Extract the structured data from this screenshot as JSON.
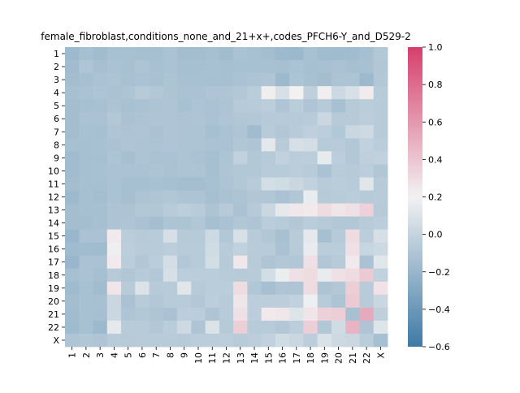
{
  "chart_data": {
    "type": "heatmap",
    "title": "female_fibroblast,conditions_none_and_21+x+,codes_PFCH6-Y_and_D529-2",
    "xlabel": "",
    "ylabel": "",
    "x_categories": [
      "1",
      "2",
      "3",
      "4",
      "5",
      "6",
      "7",
      "8",
      "9",
      "10",
      "11",
      "12",
      "13",
      "14",
      "15",
      "16",
      "17",
      "18",
      "19",
      "20",
      "21",
      "22",
      "X"
    ],
    "y_categories": [
      "1",
      "2",
      "3",
      "4",
      "5",
      "6",
      "7",
      "8",
      "9",
      "10",
      "11",
      "12",
      "13",
      "14",
      "15",
      "16",
      "17",
      "18",
      "19",
      "20",
      "21",
      "22",
      "X"
    ],
    "colorbar": {
      "range": [
        -0.6,
        1.0
      ],
      "ticks": [
        -0.6,
        -0.4,
        -0.2,
        0.0,
        0.2,
        0.4,
        0.6,
        0.8,
        1.0
      ],
      "tick_labels": [
        "−0.6",
        "−0.4",
        "−0.2",
        "0.0",
        "0.2",
        "0.4",
        "0.6",
        "0.8",
        "1.0"
      ],
      "colors": {
        "low": "#3f7aa5",
        "mid": "#f2f2f2",
        "high": "#d63e6c"
      }
    },
    "values": [
      [
        -0.18,
        -0.14,
        -0.16,
        -0.13,
        -0.13,
        -0.14,
        -0.14,
        -0.12,
        -0.15,
        -0.15,
        -0.14,
        -0.16,
        -0.12,
        -0.13,
        -0.15,
        -0.18,
        -0.19,
        -0.13,
        -0.16,
        -0.17,
        -0.16,
        -0.14,
        -0.08
      ],
      [
        -0.16,
        -0.1,
        -0.14,
        -0.12,
        -0.13,
        -0.11,
        -0.13,
        -0.12,
        -0.14,
        -0.14,
        -0.13,
        -0.14,
        -0.13,
        -0.13,
        -0.13,
        -0.14,
        -0.12,
        -0.14,
        -0.13,
        -0.12,
        -0.14,
        -0.13,
        -0.09
      ],
      [
        -0.15,
        -0.14,
        -0.12,
        -0.11,
        -0.13,
        -0.12,
        -0.13,
        -0.11,
        -0.13,
        -0.13,
        -0.14,
        -0.14,
        -0.12,
        -0.11,
        -0.1,
        -0.18,
        -0.11,
        -0.13,
        -0.15,
        -0.11,
        -0.11,
        -0.18,
        -0.08
      ],
      [
        -0.14,
        -0.12,
        -0.11,
        -0.12,
        -0.11,
        -0.07,
        -0.08,
        -0.11,
        -0.12,
        -0.12,
        -0.1,
        -0.1,
        -0.08,
        -0.05,
        0.22,
        0.08,
        0.21,
        -0.03,
        0.22,
        0.03,
        0.08,
        0.23,
        -0.06
      ],
      [
        -0.15,
        -0.14,
        -0.13,
        -0.11,
        -0.13,
        -0.12,
        -0.11,
        -0.1,
        -0.13,
        -0.11,
        -0.12,
        -0.11,
        -0.07,
        -0.06,
        -0.04,
        -0.1,
        -0.05,
        -0.1,
        -0.07,
        -0.13,
        -0.07,
        -0.05,
        -0.06
      ],
      [
        -0.15,
        -0.12,
        -0.12,
        -0.08,
        -0.12,
        -0.11,
        -0.1,
        -0.1,
        -0.11,
        -0.1,
        -0.12,
        -0.1,
        -0.09,
        -0.08,
        -0.07,
        -0.07,
        -0.07,
        -0.06,
        0.02,
        -0.07,
        -0.07,
        -0.04,
        -0.06
      ],
      [
        -0.15,
        -0.13,
        -0.14,
        -0.1,
        -0.11,
        -0.1,
        -0.12,
        -0.1,
        -0.11,
        -0.11,
        -0.14,
        -0.12,
        -0.1,
        -0.16,
        -0.06,
        -0.09,
        -0.06,
        -0.03,
        -0.04,
        -0.08,
        0.02,
        0.04,
        -0.06
      ],
      [
        -0.13,
        -0.14,
        -0.13,
        -0.12,
        -0.1,
        -0.11,
        -0.11,
        -0.1,
        -0.11,
        -0.11,
        -0.12,
        -0.12,
        -0.09,
        -0.1,
        0.13,
        -0.06,
        0.07,
        0.06,
        -0.07,
        -0.06,
        -0.08,
        -0.02,
        -0.05
      ],
      [
        -0.16,
        -0.14,
        -0.14,
        -0.11,
        -0.14,
        -0.11,
        -0.12,
        -0.12,
        -0.11,
        -0.12,
        -0.14,
        -0.11,
        -0.02,
        -0.08,
        -0.07,
        -0.02,
        -0.05,
        -0.04,
        0.15,
        -0.04,
        -0.08,
        -0.03,
        -0.02
      ],
      [
        -0.16,
        -0.14,
        -0.13,
        -0.12,
        -0.12,
        -0.12,
        -0.11,
        -0.12,
        -0.11,
        -0.11,
        -0.14,
        -0.1,
        -0.08,
        -0.08,
        -0.06,
        -0.06,
        -0.05,
        -0.06,
        -0.12,
        -0.06,
        -0.07,
        -0.04,
        -0.09
      ],
      [
        -0.15,
        -0.14,
        -0.14,
        -0.12,
        -0.14,
        -0.14,
        -0.13,
        -0.14,
        -0.15,
        -0.15,
        -0.13,
        -0.11,
        -0.08,
        -0.06,
        0.06,
        0.05,
        0.02,
        -0.02,
        -0.06,
        -0.05,
        -0.06,
        0.12,
        -0.07
      ],
      [
        -0.18,
        -0.14,
        -0.15,
        -0.12,
        -0.14,
        -0.11,
        -0.1,
        -0.09,
        -0.11,
        -0.11,
        -0.14,
        -0.12,
        -0.11,
        -0.09,
        -0.09,
        -0.12,
        -0.09,
        0.16,
        -0.07,
        -0.06,
        -0.05,
        -0.07,
        -0.06
      ],
      [
        -0.15,
        -0.14,
        -0.14,
        -0.11,
        -0.11,
        -0.08,
        -0.09,
        -0.06,
        -0.04,
        -0.06,
        -0.11,
        -0.07,
        -0.12,
        -0.07,
        0.02,
        0.14,
        0.25,
        0.24,
        0.3,
        0.26,
        0.28,
        0.35,
        -0.07
      ],
      [
        -0.15,
        -0.15,
        -0.14,
        -0.11,
        -0.1,
        -0.12,
        -0.15,
        -0.11,
        -0.11,
        -0.09,
        -0.14,
        -0.12,
        -0.09,
        -0.1,
        -0.05,
        -0.06,
        -0.08,
        -0.05,
        -0.07,
        -0.08,
        -0.08,
        -0.06,
        -0.04
      ],
      [
        -0.2,
        -0.12,
        -0.12,
        0.24,
        -0.05,
        -0.07,
        -0.06,
        0.07,
        -0.07,
        -0.07,
        0.04,
        -0.08,
        0.08,
        -0.06,
        -0.09,
        -0.13,
        -0.06,
        0.14,
        -0.14,
        -0.07,
        0.3,
        -0.04,
        0.07
      ],
      [
        -0.17,
        -0.16,
        -0.17,
        0.18,
        -0.04,
        -0.06,
        -0.06,
        -0.04,
        -0.06,
        -0.06,
        0.05,
        -0.06,
        -0.02,
        -0.06,
        -0.06,
        -0.12,
        -0.06,
        0.16,
        -0.05,
        -0.05,
        0.28,
        0.01,
        0.03
      ],
      [
        -0.2,
        -0.12,
        -0.12,
        0.24,
        -0.05,
        -0.08,
        -0.05,
        0.06,
        -0.08,
        -0.06,
        0.06,
        -0.07,
        0.25,
        -0.06,
        -0.1,
        -0.08,
        -0.09,
        0.28,
        -0.09,
        -0.07,
        0.24,
        -0.12,
        0.12
      ],
      [
        -0.14,
        -0.12,
        -0.14,
        -0.07,
        -0.09,
        -0.07,
        -0.08,
        0.08,
        -0.04,
        -0.05,
        -0.05,
        -0.06,
        -0.07,
        -0.06,
        0.06,
        0.17,
        0.28,
        0.3,
        0.16,
        0.28,
        0.3,
        0.38,
        -0.02
      ],
      [
        -0.17,
        -0.13,
        -0.16,
        0.26,
        -0.06,
        0.1,
        -0.07,
        -0.06,
        0.12,
        -0.07,
        -0.05,
        -0.05,
        0.3,
        -0.09,
        -0.14,
        -0.1,
        -0.1,
        0.3,
        -0.11,
        -0.08,
        0.36,
        -0.06,
        0.27
      ],
      [
        -0.15,
        -0.13,
        -0.13,
        0.02,
        -0.12,
        -0.06,
        -0.08,
        -0.06,
        -0.06,
        -0.08,
        -0.04,
        -0.06,
        0.26,
        -0.04,
        -0.04,
        -0.04,
        -0.02,
        0.18,
        -0.06,
        -0.11,
        0.38,
        -0.06,
        0.02
      ],
      [
        -0.16,
        -0.13,
        -0.14,
        0.02,
        -0.1,
        -0.08,
        -0.1,
        -0.12,
        -0.04,
        -0.05,
        -0.1,
        -0.06,
        0.28,
        -0.04,
        0.24,
        0.25,
        0.11,
        0.26,
        0.35,
        0.36,
        -0.13,
        0.52,
        -0.03
      ],
      [
        -0.17,
        -0.13,
        -0.18,
        0.14,
        -0.06,
        -0.06,
        -0.08,
        -0.05,
        0.04,
        -0.1,
        0.1,
        -0.07,
        0.36,
        -0.06,
        -0.06,
        -0.08,
        -0.04,
        0.36,
        -0.08,
        0.05,
        0.48,
        -0.1,
        0.11
      ],
      [
        -0.1,
        -0.09,
        -0.1,
        -0.06,
        -0.07,
        -0.06,
        -0.06,
        -0.06,
        -0.07,
        -0.05,
        -0.05,
        -0.04,
        -0.06,
        -0.04,
        -0.02,
        0.05,
        0.02,
        -0.04,
        0.09,
        0.03,
        0.02,
        -0.05,
        -0.14
      ]
    ]
  }
}
